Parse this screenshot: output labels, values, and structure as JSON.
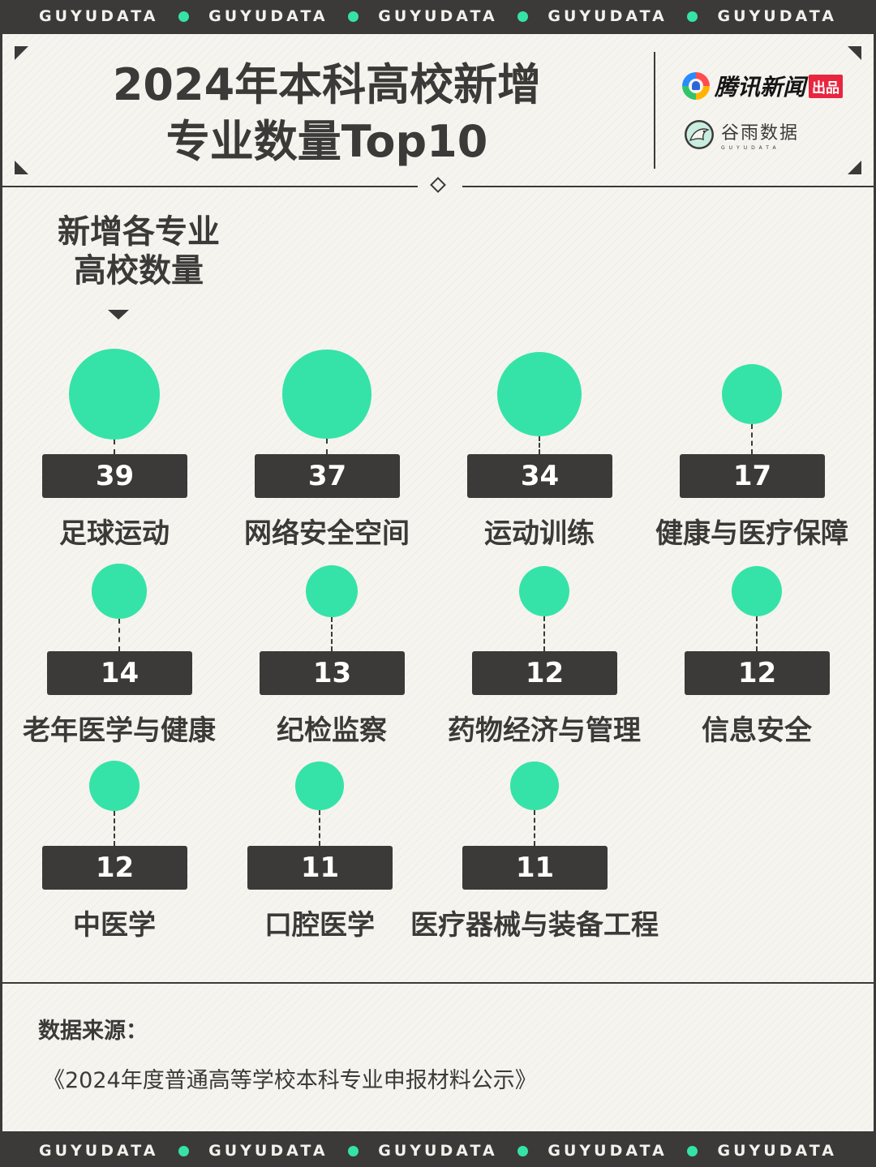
{
  "band": {
    "word": "GUYUDATA",
    "accent_color": "#35e3a8"
  },
  "header": {
    "title_line1": "2024年本科高校新增",
    "title_line2": "专业数量Top10",
    "brand1": {
      "icon": "tencent-news-bubble-icon",
      "text": "腾讯新闻",
      "tag": "出品"
    },
    "brand2": {
      "icon": "bird-logo-icon",
      "text_cn": "谷雨数据",
      "text_en": "GUYUDATA"
    }
  },
  "subtitle": {
    "line1": "新增各专业",
    "line2": "高校数量"
  },
  "chart_data": {
    "type": "bubble",
    "title": "2024年本科高校新增专业数量Top10",
    "value_label": "新增各专业高校数量",
    "color": "#35e3a8",
    "categories": [
      "足球运动",
      "网络安全空间",
      "运动训练",
      "健康与医疗保障",
      "老年医学与健康",
      "纪检监察",
      "药物经济与管理",
      "信息安全",
      "中医学",
      "口腔医学",
      "医疗器械与装备工程"
    ],
    "values": [
      39,
      37,
      34,
      17,
      14,
      13,
      12,
      12,
      12,
      11,
      11
    ]
  },
  "footer": {
    "source_label": "数据来源：",
    "source_text": "《2024年度普通高等学校本科专业申报材料公示》"
  }
}
